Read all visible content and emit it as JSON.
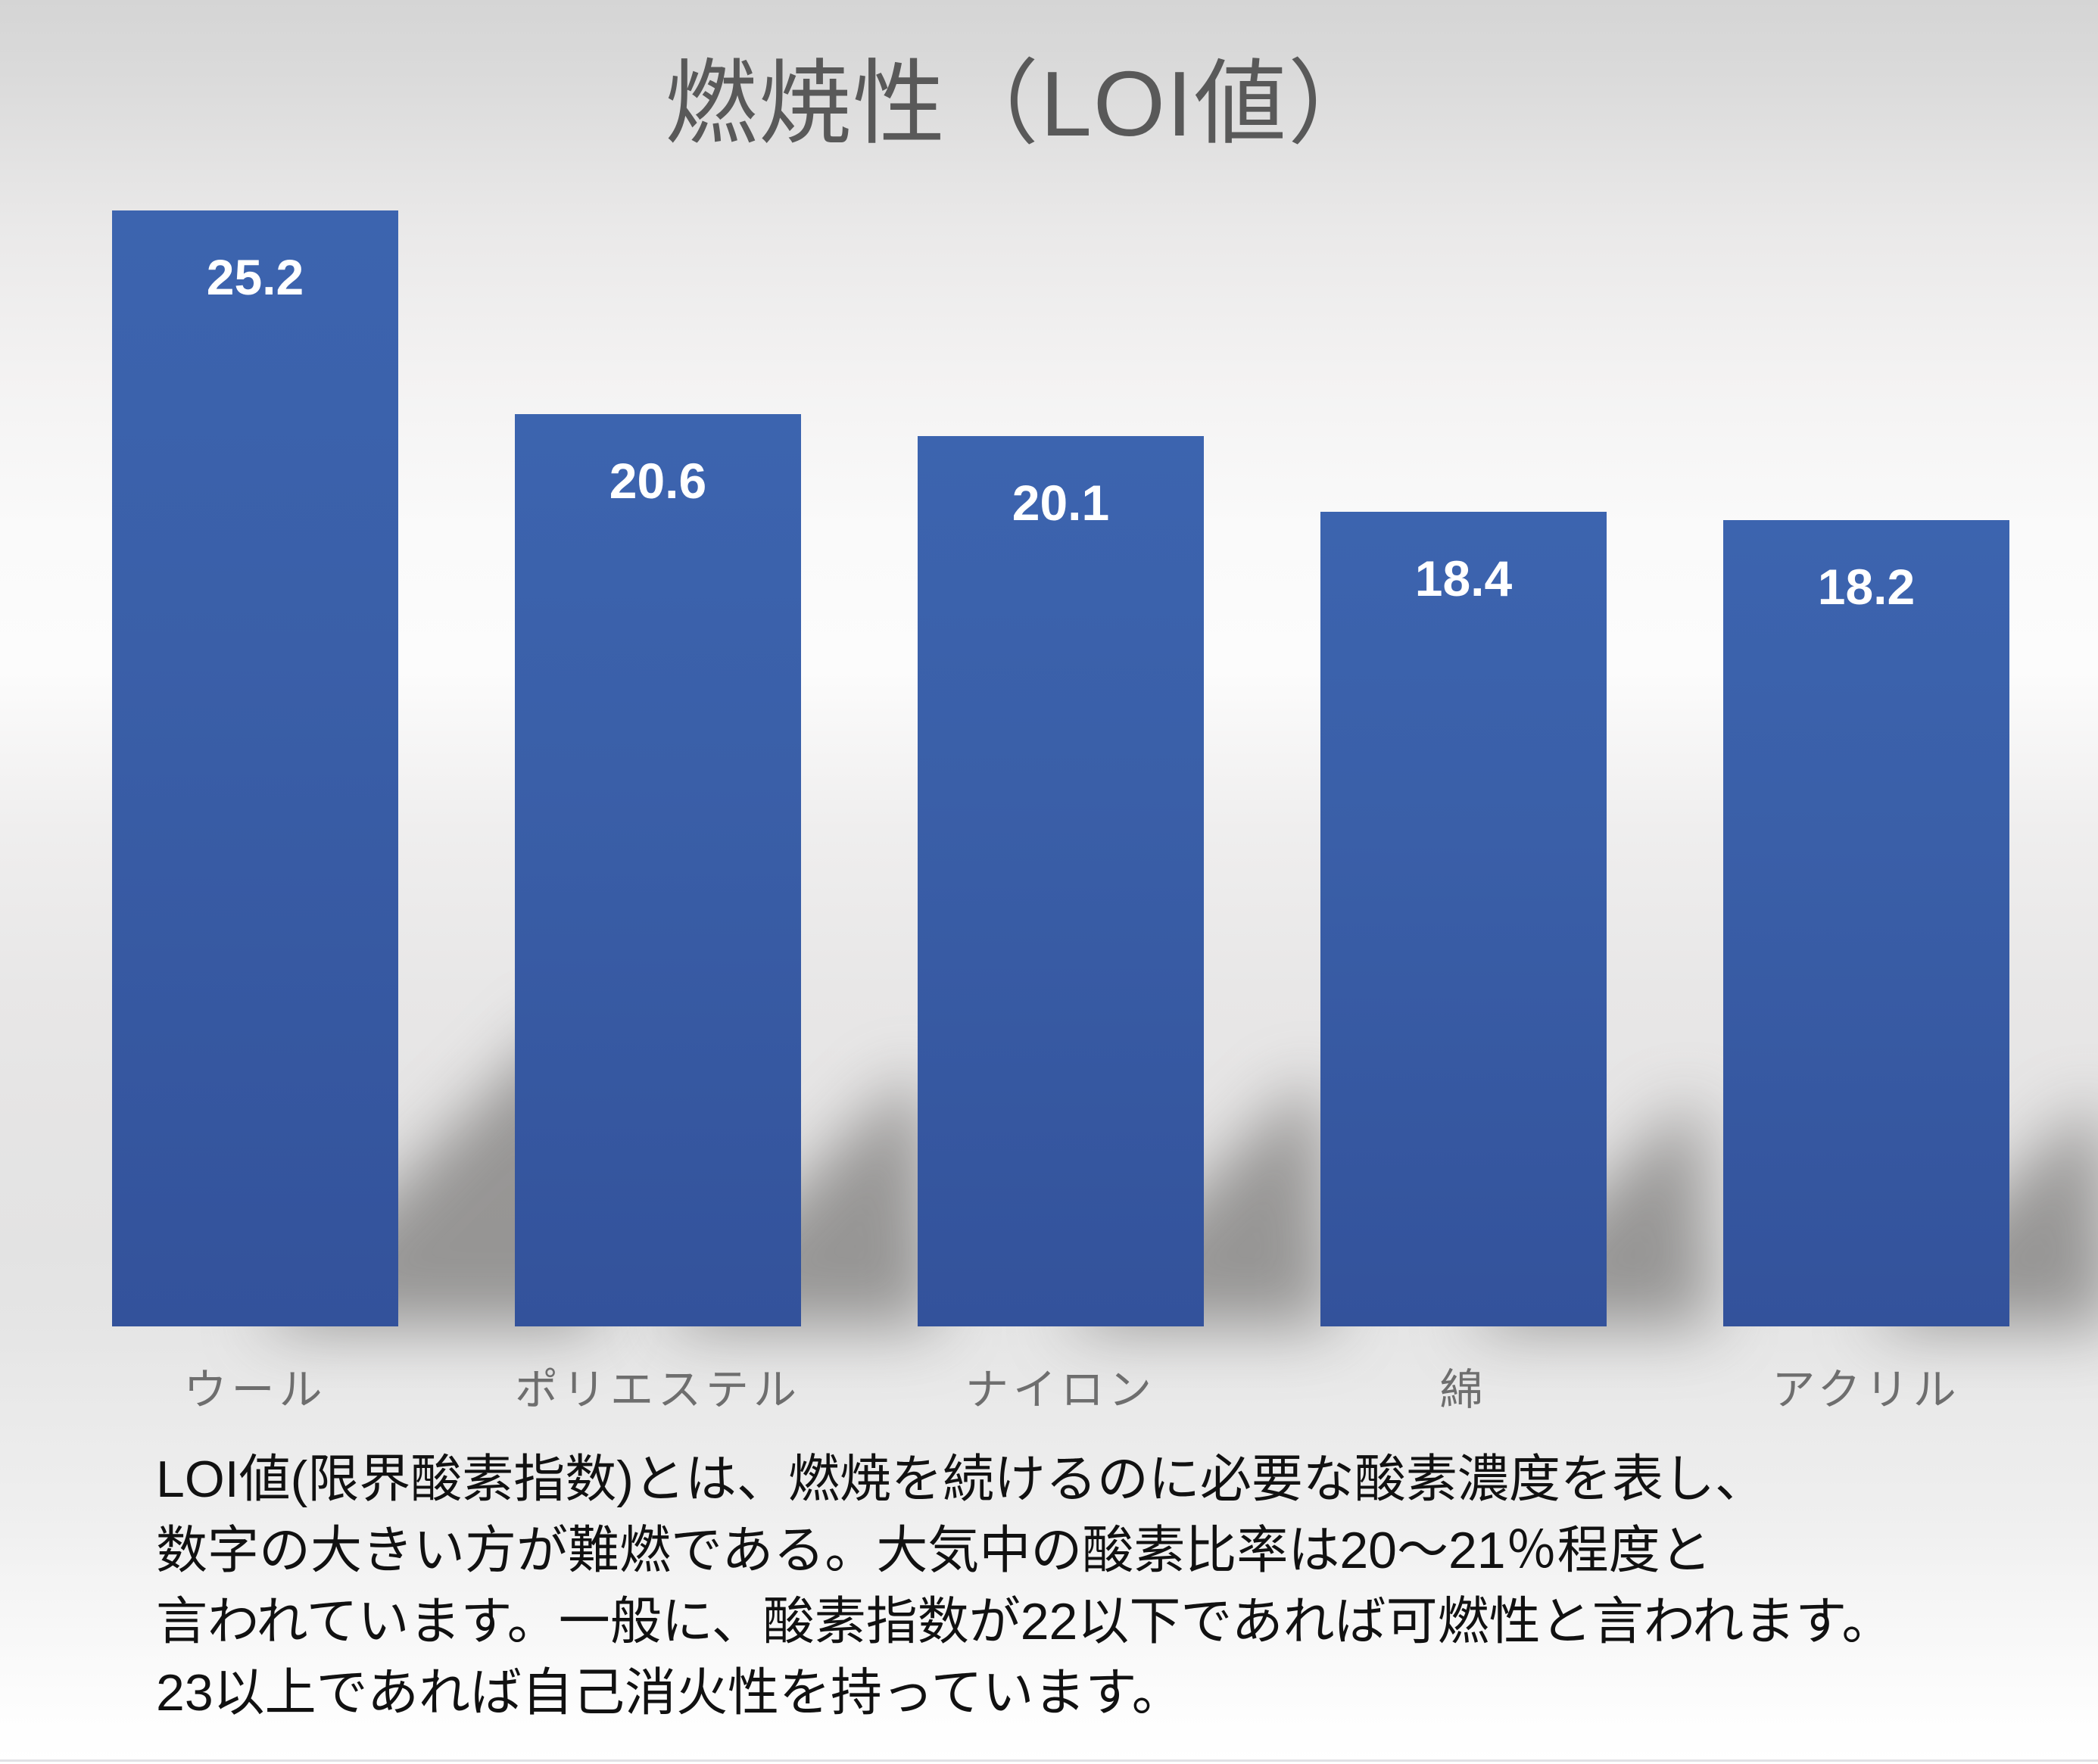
{
  "title": "燃焼性（LOI値）",
  "chart_data": {
    "type": "bar",
    "categories": [
      "ウール",
      "ポリエステル",
      "ナイロン",
      "綿",
      "アクリル"
    ],
    "values": [
      25.2,
      20.6,
      20.1,
      18.4,
      18.2
    ],
    "title": "燃焼性（LOI値）",
    "xlabel": "",
    "ylabel": "",
    "ylim": [
      0,
      26
    ],
    "grid": false,
    "legend": false,
    "bar_color": "#3A5FA8",
    "value_label_color": "#FFFFFF",
    "category_label_color": "#6E6E6E",
    "title_color": "#595959",
    "background_top_color": "#D5D5D5",
    "background_bottom_color": "#FFFFFF"
  },
  "description": {
    "lines": [
      "LOI値(限界酸素指数)とは、燃焼を続けるのに必要な酸素濃度を表し、",
      "数字の大きい方が難燃である。大気中の酸素比率は20～21％程度と",
      "言われています。一般に、酸素指数が22以下であれば可燃性と言われます。",
      "23以上であれば自己消火性を持っています。"
    ]
  }
}
